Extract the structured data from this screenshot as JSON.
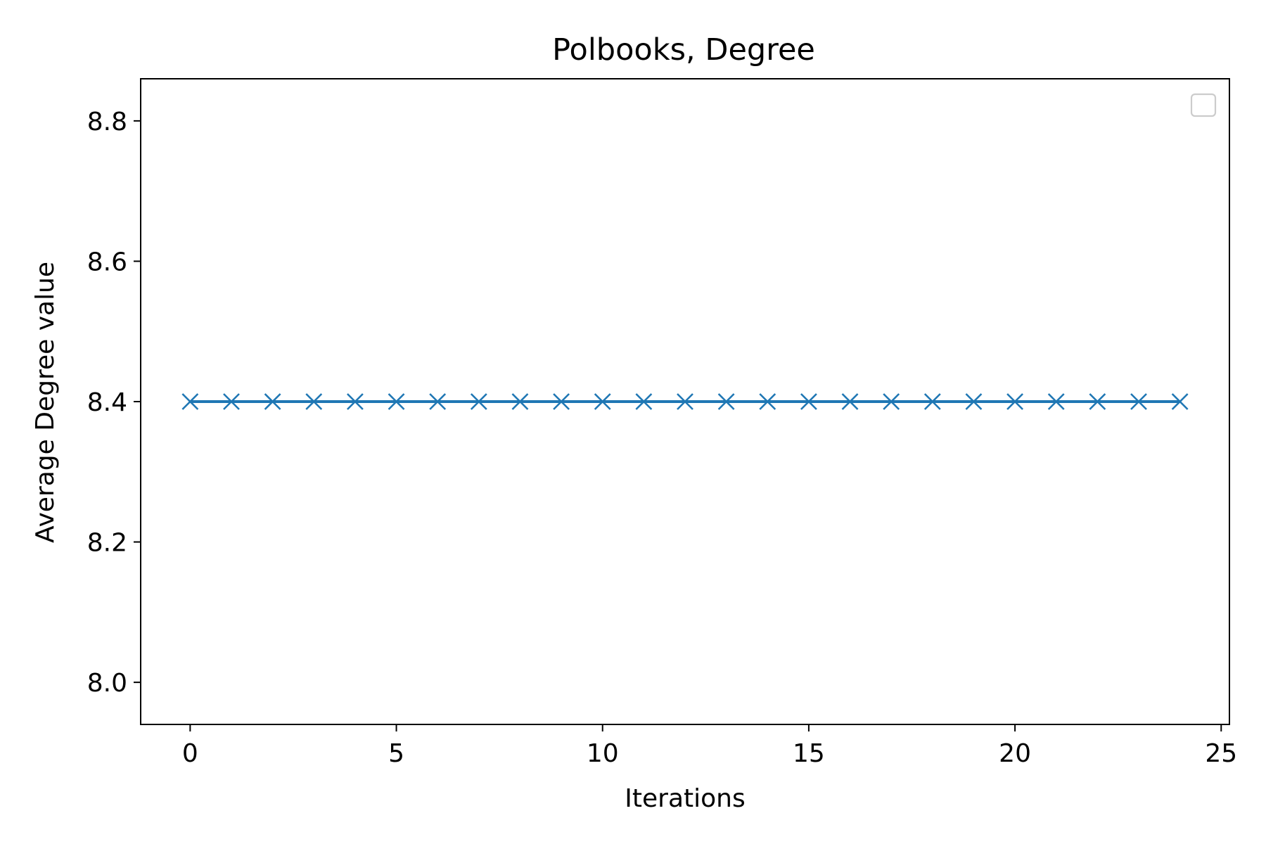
{
  "chart_data": {
    "type": "line",
    "title": "Polbooks, Degree",
    "xlabel": "Iterations",
    "ylabel": "Average Degree value",
    "xlim": [
      -1.2,
      25.2
    ],
    "ylim": [
      7.94,
      8.86
    ],
    "xticks": [
      0,
      5,
      10,
      15,
      20,
      25
    ],
    "xtick_labels": [
      "0",
      "5",
      "10",
      "15",
      "20",
      "25"
    ],
    "yticks": [
      8.0,
      8.2,
      8.4,
      8.6,
      8.8
    ],
    "ytick_labels": [
      "8.0",
      "8.2",
      "8.4",
      "8.6",
      "8.8"
    ],
    "grid": false,
    "legend": {
      "location": "upper right",
      "entries": []
    },
    "series": [
      {
        "color": "#1f77b4",
        "marker": "x",
        "x": [
          0,
          1,
          2,
          3,
          4,
          5,
          6,
          7,
          8,
          9,
          10,
          11,
          12,
          13,
          14,
          15,
          16,
          17,
          18,
          19,
          20,
          21,
          22,
          23,
          24
        ],
        "y": [
          8.4,
          8.4,
          8.4,
          8.4,
          8.4,
          8.4,
          8.4,
          8.4,
          8.4,
          8.4,
          8.4,
          8.4,
          8.4,
          8.4,
          8.4,
          8.4,
          8.4,
          8.4,
          8.4,
          8.4,
          8.4,
          8.4,
          8.4,
          8.4,
          8.4
        ]
      }
    ]
  }
}
